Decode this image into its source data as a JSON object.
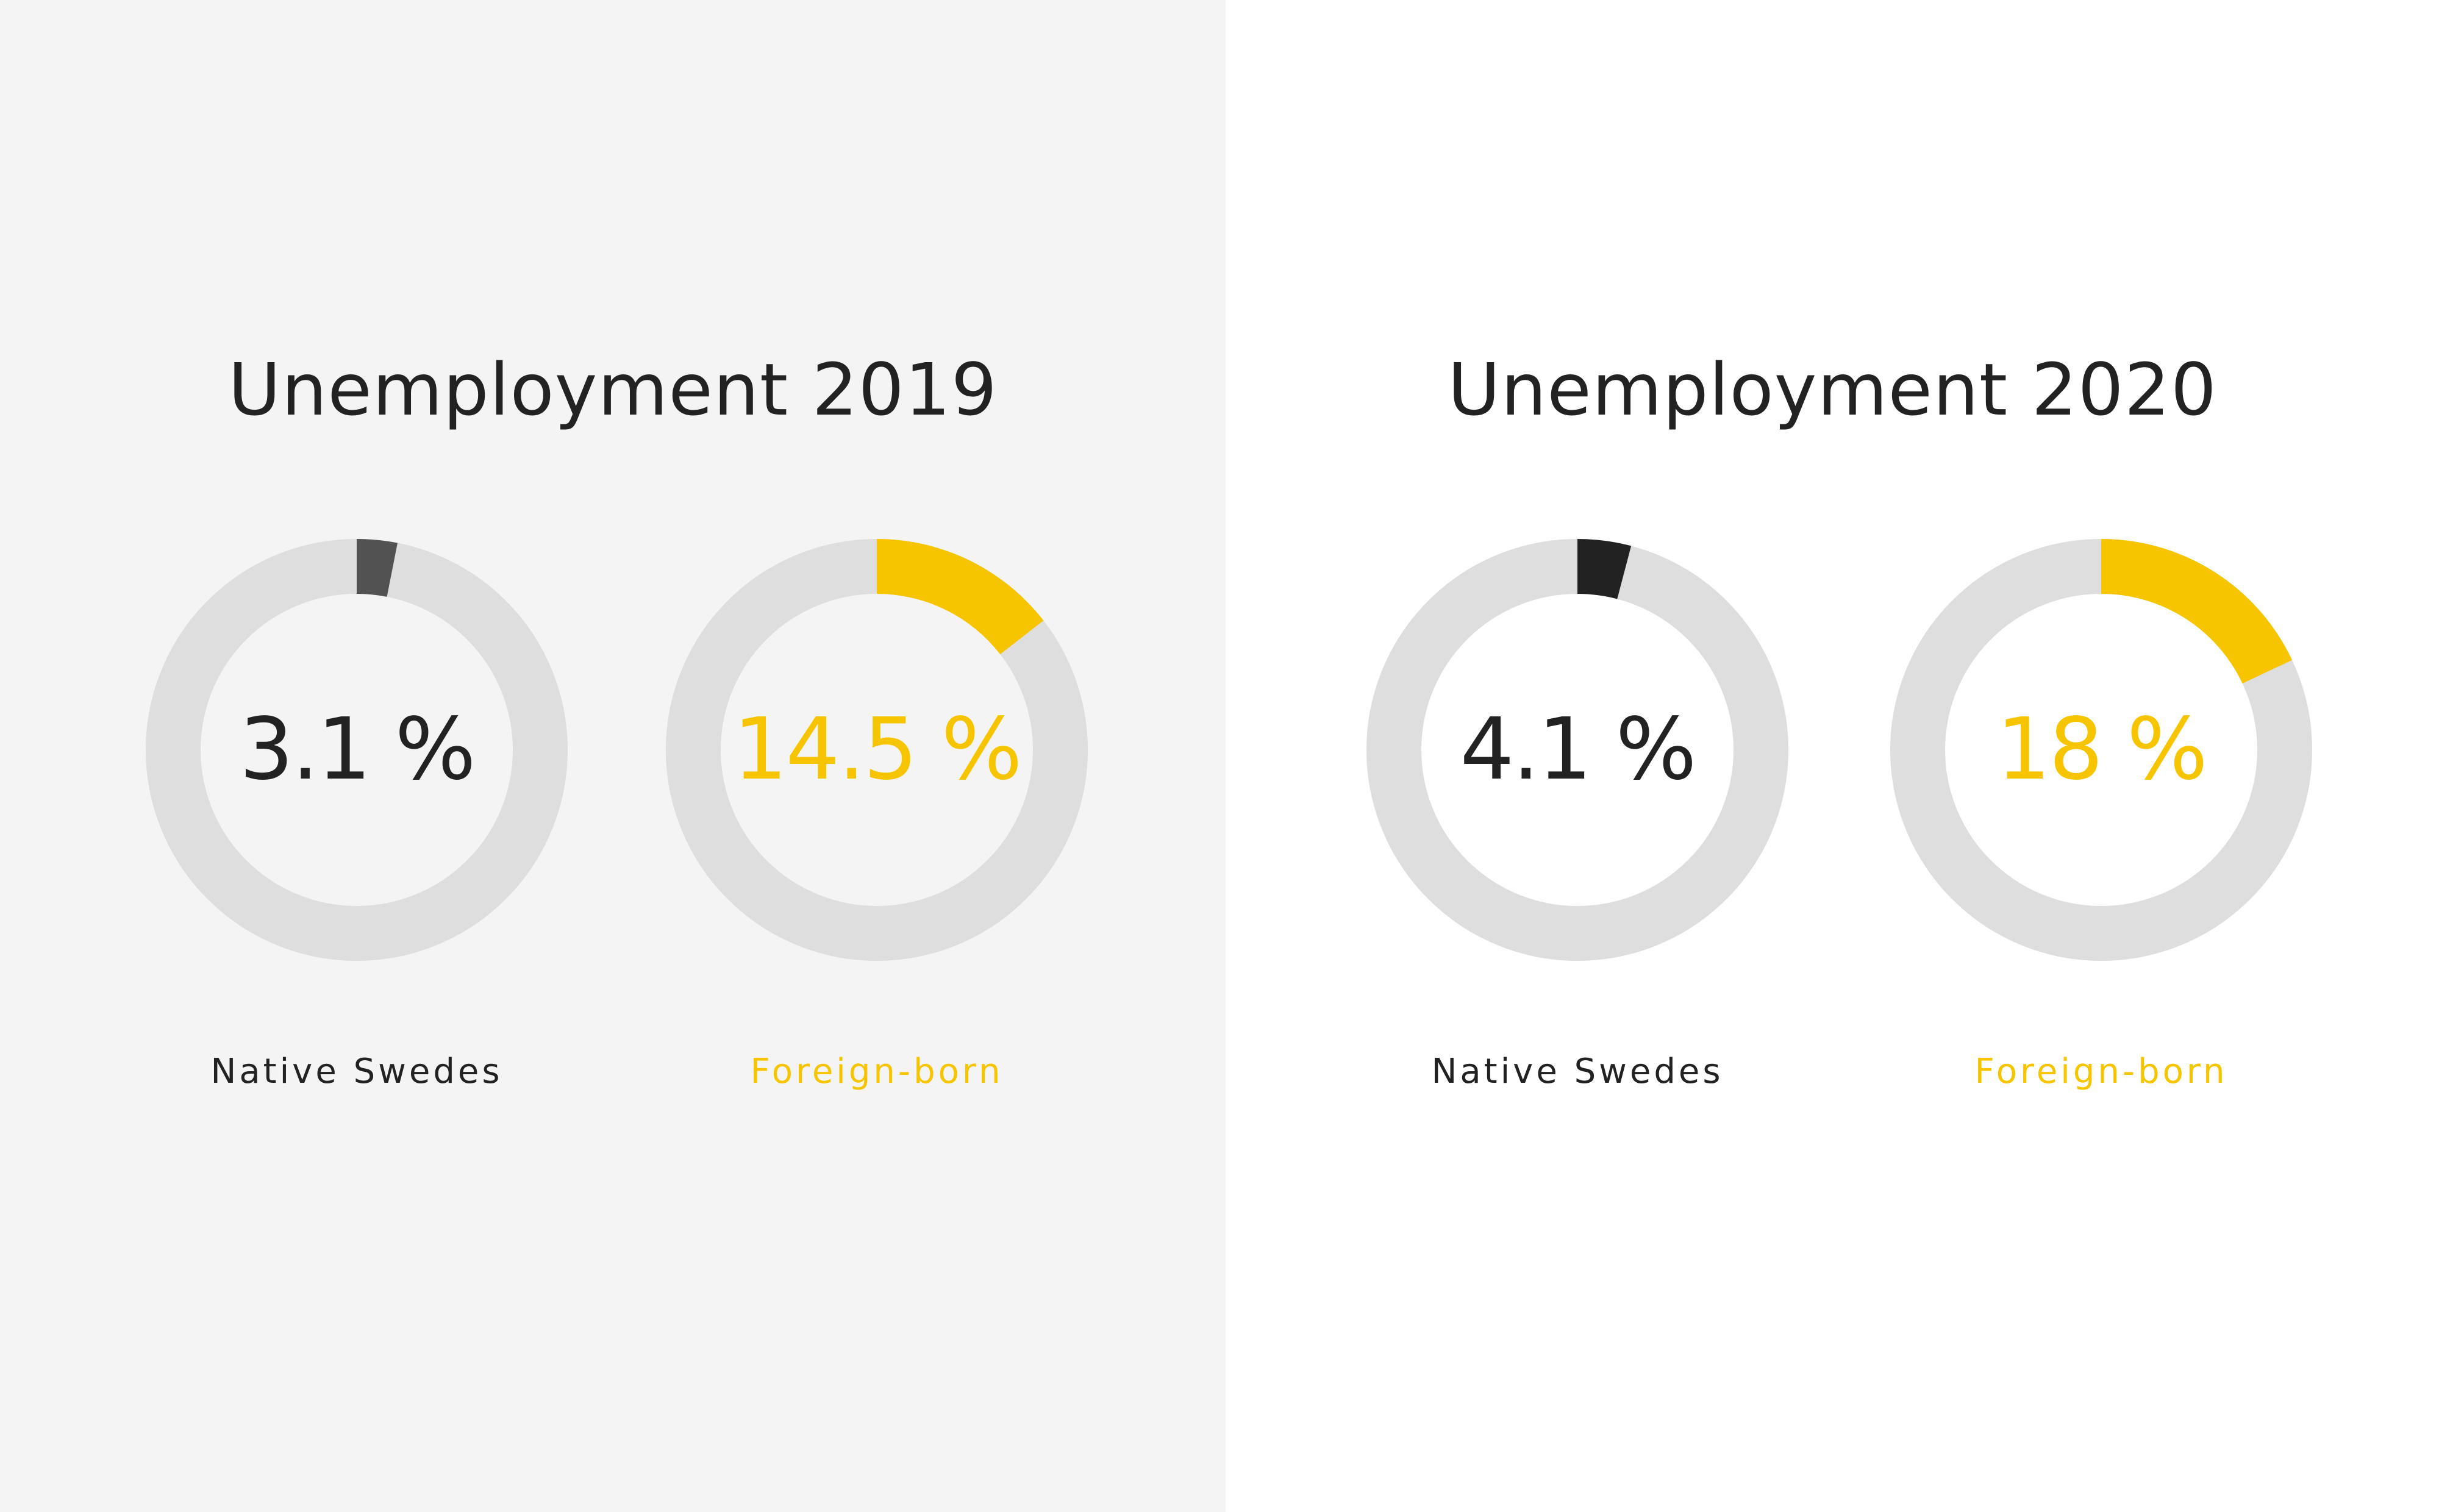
{
  "colors": {
    "track": "#dedede",
    "yellow": "#f7c500",
    "dark2019": "#525252",
    "dark2020": "#222222",
    "text": "#222222"
  },
  "chart_data": [
    {
      "type": "pie",
      "title": "Unemployment 2019",
      "series": [
        {
          "name": "Native Swedes",
          "value": 3.1,
          "label": "3.1 %",
          "color": "#525252",
          "text_color": "#222222"
        },
        {
          "name": "Foreign-born",
          "value": 14.5,
          "label": "14.5 %",
          "color": "#f7c500",
          "text_color": "#f7c500"
        }
      ]
    },
    {
      "type": "pie",
      "title": "Unemployment 2020",
      "series": [
        {
          "name": "Native Swedes",
          "value": 4.1,
          "label": "4.1 %",
          "color": "#222222",
          "text_color": "#222222"
        },
        {
          "name": "Foreign-born",
          "value": 18,
          "label": "18 %",
          "color": "#f7c500",
          "text_color": "#f7c500"
        }
      ]
    }
  ]
}
